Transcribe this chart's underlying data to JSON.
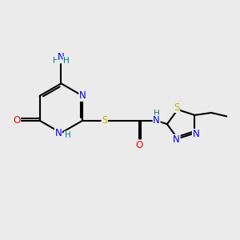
{
  "bg_color": "#ebebeb",
  "bond_color": "#000000",
  "atom_colors": {
    "N": "#0000ff",
    "O": "#ff0000",
    "S": "#b8b800",
    "C": "#000000",
    "H": "#008080"
  },
  "bond_width": 1.5,
  "font_size": 8.5
}
